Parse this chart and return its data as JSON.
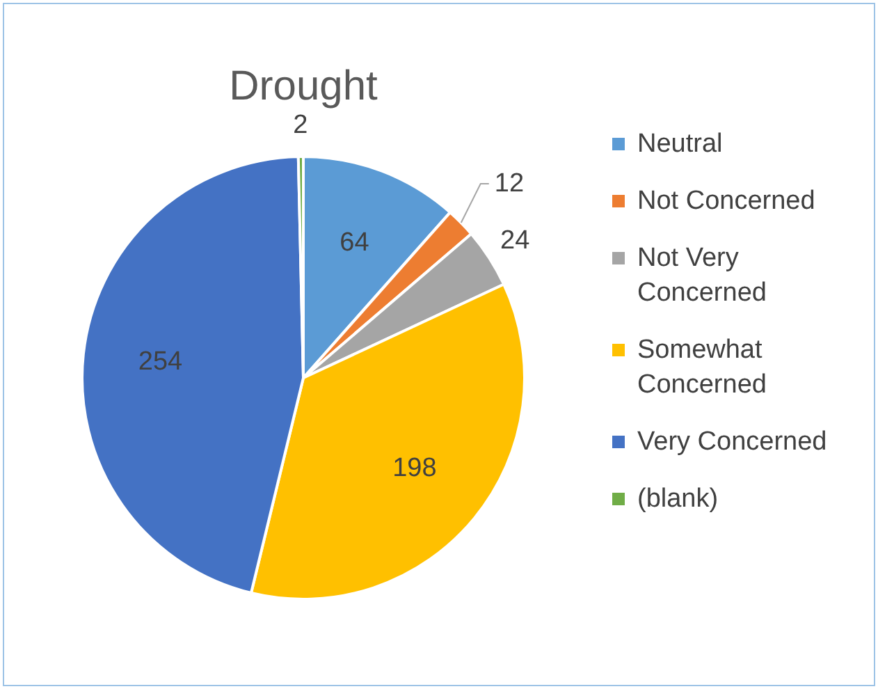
{
  "chart_data": {
    "type": "pie",
    "title": "Drought",
    "categories": [
      "Neutral",
      "Not Concerned",
      "Not Very Concerned",
      "Somewhat Concerned",
      "Very Concerned",
      "(blank)"
    ],
    "values": [
      64,
      12,
      24,
      198,
      254,
      2
    ],
    "colors": [
      "#5b9bd5",
      "#ed7d31",
      "#a5a5a5",
      "#ffc000",
      "#4472c4",
      "#70ad47"
    ],
    "data_labels": true,
    "legend": "right"
  }
}
